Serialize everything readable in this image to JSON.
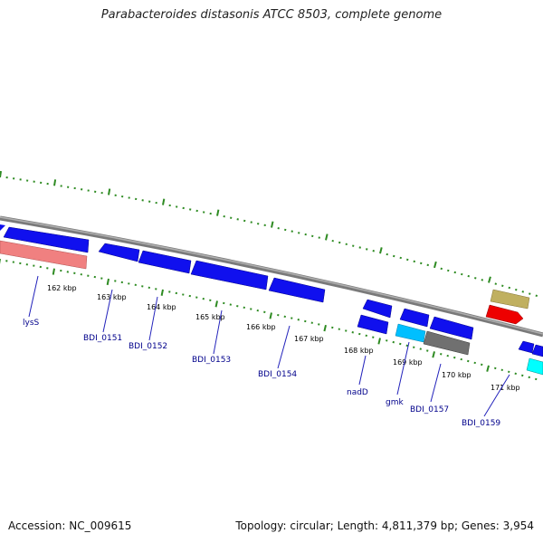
{
  "title": "Parabacteroides distasonis ATCC 8503, complete genome",
  "footer": {
    "accession": "Accession: NC_009615",
    "stats": "Topology: circular; Length: 4,811,379 bp; Genes: 3,954"
  },
  "ticks": [
    "162 kbp",
    "163 kbp",
    "164 kbp",
    "165 kbp",
    "166 kbp",
    "167 kbp",
    "168 kbp",
    "169 kbp",
    "170 kbp",
    "171 kbp"
  ],
  "gene_labels": [
    "lysS",
    "BDI_0151",
    "BDI_0152",
    "BDI_0153",
    "BDI_0154",
    "nadD",
    "gmk",
    "BDI_0157",
    "BDI_0159"
  ],
  "colors": {
    "cds": "#1010ee",
    "rrna": "#f08080",
    "trna": "#00bfff",
    "pseudo": "#707070",
    "misc": "#c0b060",
    "special": "#ee0000",
    "tick": "#2e8b22",
    "backbone": "#888888"
  }
}
